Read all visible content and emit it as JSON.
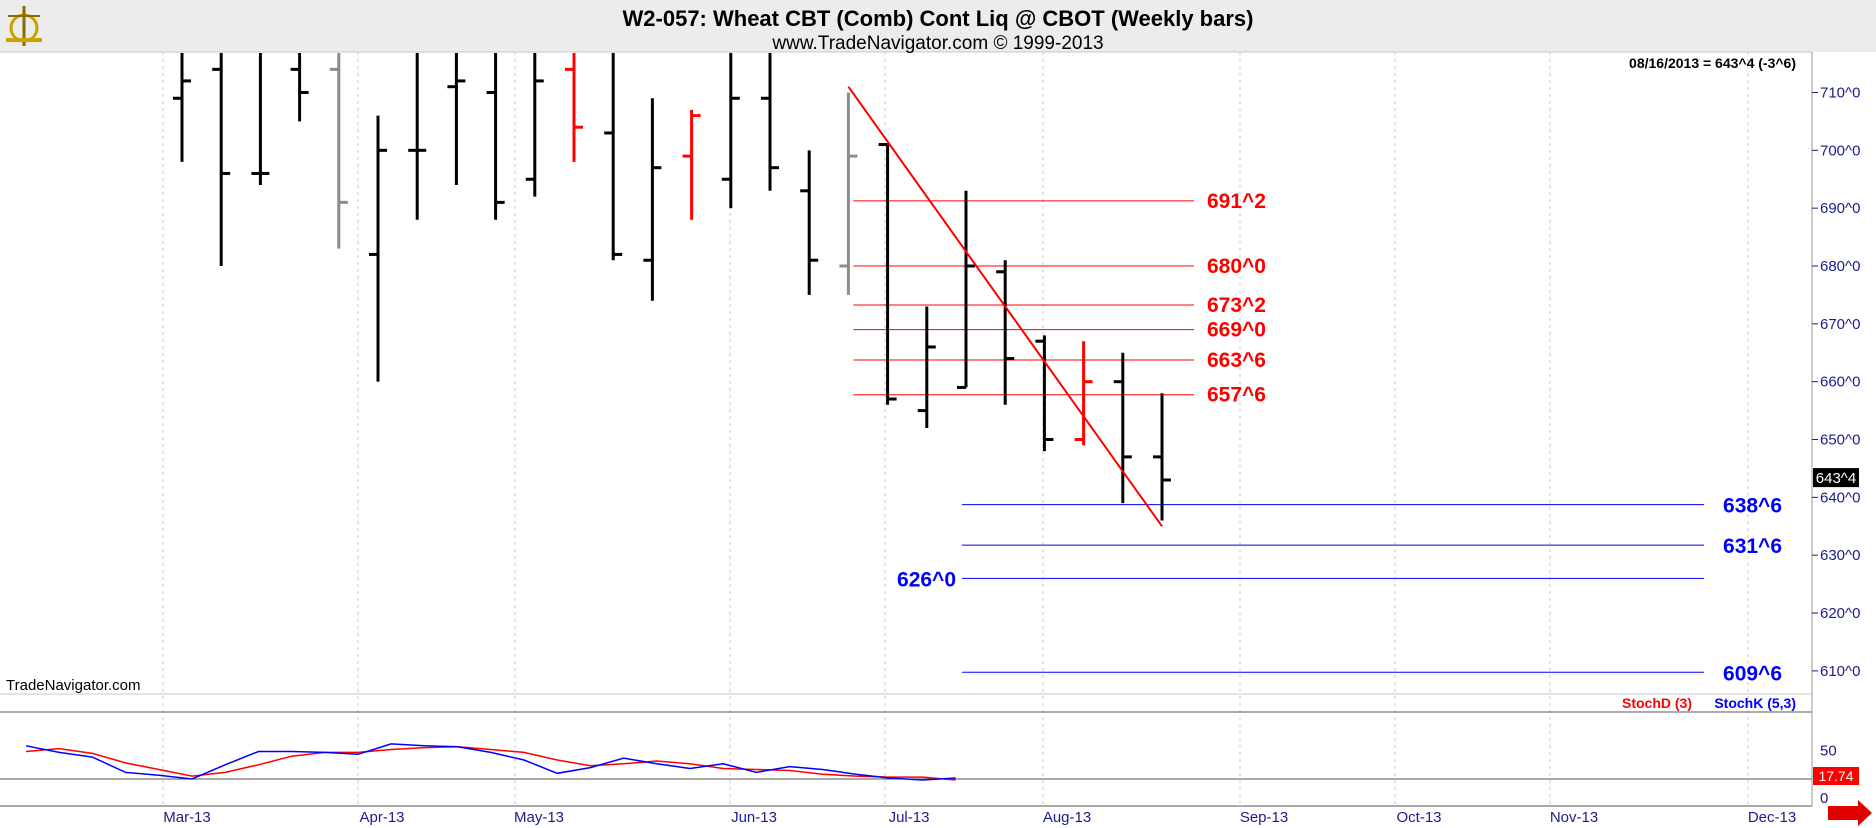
{
  "header": {
    "title": "W2-057:  Wheat CBT (Comb) Cont Liq @ CBOT  (Weekly bars)",
    "subtitle": "www.TradeNavigator.com © 1999-2013"
  },
  "quote": "08/16/2013 = 643^4 (-3^6)",
  "last_price_tag": "643^4",
  "watermark": "TradeNavigator.com",
  "indicator": {
    "stochd_label": "StochD (3)",
    "stochk_label": "StochK (5,3)",
    "last_value_tag": "17.74",
    "y_ticks": [
      {
        "value": 50,
        "label": "50"
      },
      {
        "value": 0,
        "label": "0"
      }
    ]
  },
  "colors": {
    "bar": "#000000",
    "bar_gray": "#8c8c8c",
    "bar_red": "#ff0000",
    "resistance": "#ff0000",
    "support": "#0000ff",
    "axis_text": "#1c1c8c",
    "stochd": "#ff0000",
    "stochk": "#0000ff"
  },
  "chart_data": {
    "type": "ohlc",
    "price_ticks": [
      {
        "value": 710,
        "label": "710^0"
      },
      {
        "value": 700,
        "label": "700^0"
      },
      {
        "value": 690,
        "label": "690^0"
      },
      {
        "value": 680,
        "label": "680^0"
      },
      {
        "value": 670,
        "label": "670^0"
      },
      {
        "value": 660,
        "label": "660^0"
      },
      {
        "value": 650,
        "label": "650^0"
      },
      {
        "value": 640,
        "label": "640^0"
      },
      {
        "value": 630,
        "label": "630^0"
      },
      {
        "value": 620,
        "label": "620^0"
      },
      {
        "value": 610,
        "label": "610^0"
      }
    ],
    "price_range": [
      606,
      717
    ],
    "time_labels": [
      "Mar-13",
      "Apr-13",
      "May-13",
      "Jun-13",
      "Jul-13",
      "Aug-13",
      "Sep-13",
      "Oct-13",
      "Nov-13",
      "Dec-13"
    ],
    "bars": [
      {
        "week": 0,
        "high": 717,
        "low": 698,
        "open": 709,
        "close": 712,
        "color": "black"
      },
      {
        "week": 1,
        "high": 717,
        "low": 680,
        "open": 714,
        "close": 696,
        "color": "black"
      },
      {
        "week": 2,
        "high": 717,
        "low": 694,
        "open": 696,
        "close": 696,
        "color": "black"
      },
      {
        "week": 3,
        "high": 717,
        "low": 705,
        "open": 714,
        "close": 710,
        "color": "black"
      },
      {
        "week": 4,
        "high": 717,
        "low": 683,
        "open": 714,
        "close": 691,
        "color": "gray"
      },
      {
        "week": 5,
        "high": 706,
        "low": 660,
        "open": 682,
        "close": 700,
        "color": "black"
      },
      {
        "week": 6,
        "high": 717,
        "low": 688,
        "open": 700,
        "close": 700,
        "color": "black"
      },
      {
        "week": 7,
        "high": 717,
        "low": 694,
        "open": 711,
        "close": 712,
        "color": "black"
      },
      {
        "week": 8,
        "high": 717,
        "low": 688,
        "open": 710,
        "close": 691,
        "color": "black"
      },
      {
        "week": 9,
        "high": 717,
        "low": 692,
        "open": 695,
        "close": 712,
        "color": "black"
      },
      {
        "week": 10,
        "high": 717,
        "low": 698,
        "open": 714,
        "close": 704,
        "color": "red"
      },
      {
        "week": 11,
        "high": 717,
        "low": 681,
        "open": 703,
        "close": 682,
        "color": "black"
      },
      {
        "week": 12,
        "high": 709,
        "low": 674,
        "open": 681,
        "close": 697,
        "color": "black"
      },
      {
        "week": 13,
        "high": 707,
        "low": 688,
        "open": 699,
        "close": 706,
        "color": "red"
      },
      {
        "week": 14,
        "high": 717,
        "low": 690,
        "open": 695,
        "close": 709,
        "color": "black"
      },
      {
        "week": 15,
        "high": 717,
        "low": 693,
        "open": 709,
        "close": 697,
        "color": "black"
      },
      {
        "week": 16,
        "high": 700,
        "low": 675,
        "open": 693,
        "close": 681,
        "color": "black"
      },
      {
        "week": 17,
        "high": 710,
        "low": 675,
        "open": 680,
        "close": 699,
        "color": "gray"
      },
      {
        "week": 18,
        "high": 701,
        "low": 656,
        "open": 701,
        "close": 657,
        "color": "black"
      },
      {
        "week": 19,
        "high": 673,
        "low": 652,
        "open": 655,
        "close": 666,
        "color": "black"
      },
      {
        "week": 20,
        "high": 693,
        "low": 659,
        "open": 659,
        "close": 680,
        "color": "black"
      },
      {
        "week": 21,
        "high": 681,
        "low": 656,
        "open": 679,
        "close": 664,
        "color": "black"
      },
      {
        "week": 22,
        "high": 668,
        "low": 648,
        "open": 667,
        "close": 650,
        "color": "black"
      },
      {
        "week": 23,
        "high": 667,
        "low": 649,
        "open": 650,
        "close": 660,
        "color": "red"
      },
      {
        "week": 24,
        "high": 665,
        "low": 639,
        "open": 660,
        "close": 647,
        "color": "black"
      },
      {
        "week": 25,
        "high": 658,
        "low": 636,
        "open": 647,
        "close": 643,
        "color": "black"
      }
    ],
    "trendline": {
      "from": {
        "week": 17,
        "price": 711
      },
      "to": {
        "week": 25,
        "price": 635
      }
    },
    "resistance_levels": [
      {
        "price": 691.25,
        "label": "691^2"
      },
      {
        "price": 680.0,
        "label": "680^0"
      },
      {
        "price": 673.25,
        "label": "673^2"
      },
      {
        "price": 669.0,
        "label": "669^0"
      },
      {
        "price": 663.75,
        "label": "663^6"
      },
      {
        "price": 657.75,
        "label": "657^6"
      }
    ],
    "support_levels": [
      {
        "price": 638.75,
        "label": "638^6",
        "label_side": "right"
      },
      {
        "price": 631.75,
        "label": "631^6",
        "label_side": "right"
      },
      {
        "price": 626.0,
        "label": "626^0",
        "label_side": "left"
      },
      {
        "price": 609.75,
        "label": "609^6",
        "label_side": "right"
      }
    ],
    "stochastic": {
      "range": [
        0,
        80
      ],
      "stochd": [
        49,
        52,
        47,
        37,
        30,
        23,
        27,
        35,
        44,
        48,
        48,
        51,
        53,
        54,
        51,
        48,
        40,
        34,
        36,
        39,
        36,
        31,
        30,
        29,
        25,
        23,
        22,
        22,
        19
      ],
      "stochk": [
        55,
        48,
        43,
        27,
        24,
        20,
        35,
        49,
        49,
        48,
        46,
        57,
        55,
        54,
        48,
        40,
        26,
        32,
        42,
        36,
        31,
        36,
        27,
        33,
        30,
        25,
        21,
        19,
        21
      ]
    }
  }
}
